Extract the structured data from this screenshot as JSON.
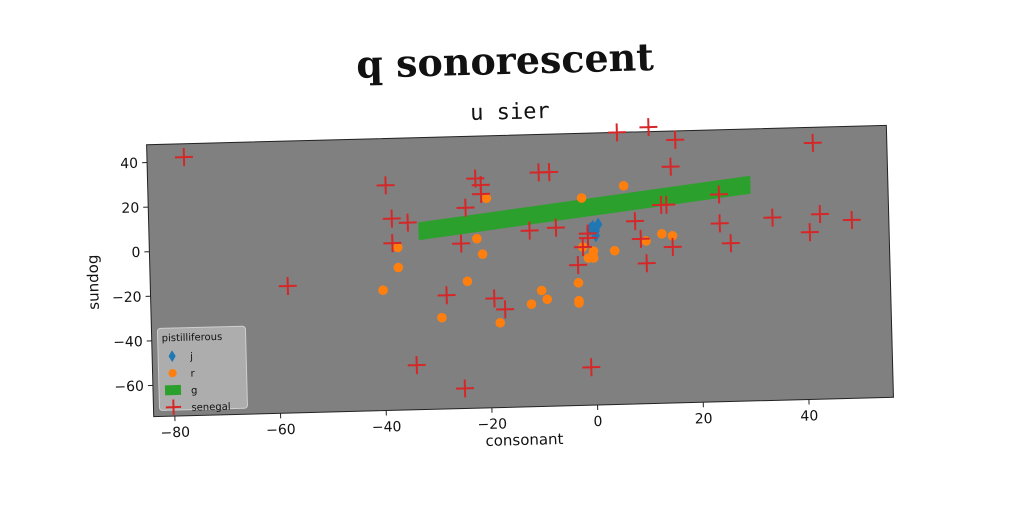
{
  "suptitle": "q sonorescent",
  "chart_data": {
    "type": "scatter",
    "title": "u sier",
    "xlabel": "consonant",
    "ylabel": "sundog",
    "xlim": [
      -84,
      56
    ],
    "ylim": [
      -74,
      48
    ],
    "xticks": [
      -80,
      -60,
      -40,
      -20,
      0,
      20,
      40
    ],
    "yticks": [
      -60,
      -40,
      -20,
      0,
      20,
      40
    ],
    "background": "#808080",
    "legend": {
      "title": "pistilliferous",
      "placement": "lower-left",
      "entries": [
        "j",
        "r",
        "g",
        "senegal"
      ]
    },
    "series": [
      {
        "name": "j",
        "marker": "diamond",
        "color": "#1f77b4",
        "points": [
          [
            0,
            6
          ],
          [
            0.5,
            4
          ],
          [
            1,
            7
          ],
          [
            -0.5,
            5
          ],
          [
            0.5,
            2
          ]
        ]
      },
      {
        "name": "r",
        "marker": "circle",
        "color": "#ff7f0e",
        "points": [
          [
            -37,
            -1
          ],
          [
            -37,
            -10
          ],
          [
            -40,
            -20
          ],
          [
            -29,
            -33
          ],
          [
            -24,
            -17
          ],
          [
            -22,
            2
          ],
          [
            -20,
            20
          ],
          [
            -21,
            -5
          ],
          [
            -18,
            -36
          ],
          [
            -12,
            -28
          ],
          [
            -10,
            -22
          ],
          [
            -9,
            -26
          ],
          [
            -3,
            -19
          ],
          [
            -3,
            -27
          ],
          [
            -3,
            -28
          ],
          [
            -2,
            -3
          ],
          [
            -1,
            -8
          ],
          [
            0,
            -8
          ],
          [
            0,
            -5
          ],
          [
            4,
            -5
          ],
          [
            6,
            24
          ],
          [
            15,
            1
          ],
          [
            -2,
            19
          ],
          [
            10,
            -1
          ],
          [
            13,
            2
          ]
        ]
      },
      {
        "name": "g",
        "marker": "band",
        "color": "#2ca02c",
        "segment": [
          [
            -33,
            6
          ],
          [
            30,
            23
          ]
        ],
        "width": 8
      },
      {
        "name": "senegal",
        "marker": "plus",
        "color": "#d62728",
        "points": [
          [
            -77,
            42
          ],
          [
            -58,
            -17
          ],
          [
            -39,
            27
          ],
          [
            -38,
            12
          ],
          [
            -38,
            1
          ],
          [
            -35,
            10
          ],
          [
            -34,
            -54
          ],
          [
            -28,
            -23
          ],
          [
            -25,
            -65
          ],
          [
            -25,
            0
          ],
          [
            -24,
            16
          ],
          [
            -22,
            29
          ],
          [
            -21,
            26
          ],
          [
            -21,
            22
          ],
          [
            -19,
            -25
          ],
          [
            -17,
            -30
          ],
          [
            -12,
            5
          ],
          [
            -10,
            31
          ],
          [
            -8,
            31
          ],
          [
            -7,
            6
          ],
          [
            -3,
            -11
          ],
          [
            -2,
            -3
          ],
          [
            -1,
            1
          ],
          [
            -1,
            -57
          ],
          [
            -1,
            3
          ],
          [
            5,
            48
          ],
          [
            8,
            8
          ],
          [
            9,
            0
          ],
          [
            10,
            -11
          ],
          [
            11,
            50
          ],
          [
            13,
            15
          ],
          [
            14,
            15
          ],
          [
            15,
            -4
          ],
          [
            15,
            32
          ],
          [
            16,
            44
          ],
          [
            24,
            19
          ],
          [
            24,
            6
          ],
          [
            26,
            -3
          ],
          [
            34,
            8
          ],
          [
            41,
            1
          ],
          [
            42,
            41
          ],
          [
            43,
            9
          ],
          [
            49,
            6
          ]
        ]
      }
    ]
  }
}
